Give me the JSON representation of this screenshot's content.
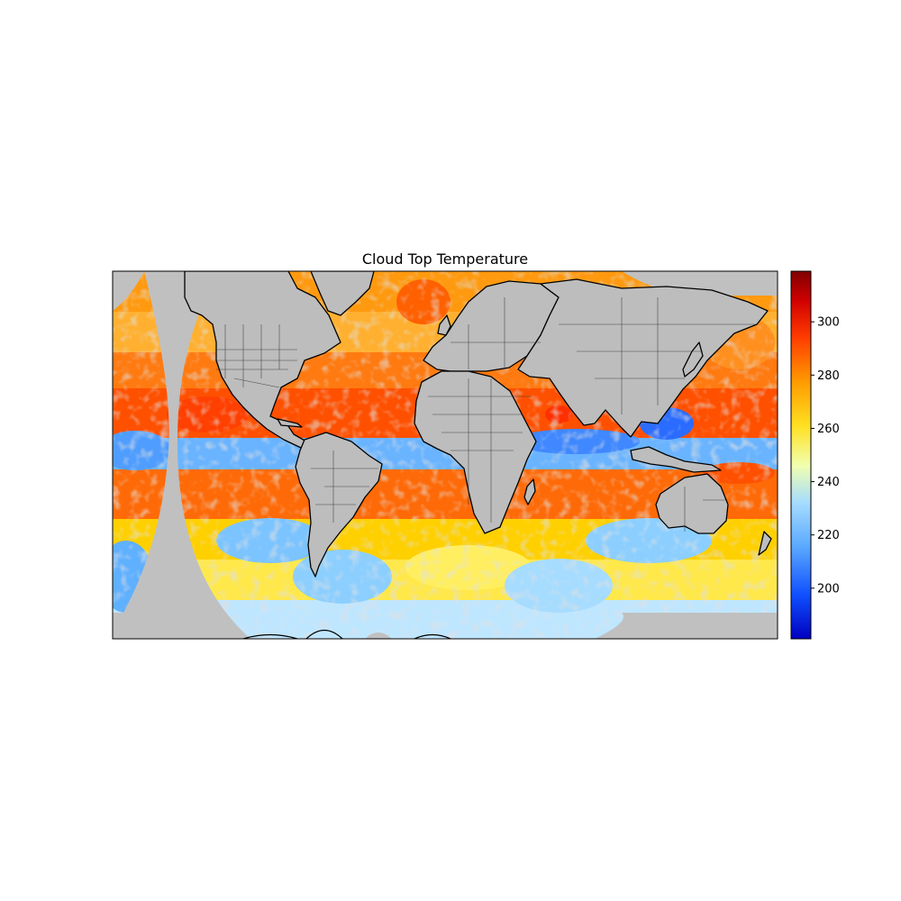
{
  "map": {
    "title": "Cloud Top Temperature",
    "projection": "plate-carree",
    "extent": {
      "lon": [
        -180,
        180
      ],
      "lat": [
        -90,
        90
      ]
    },
    "background_color": "#c0c0c0",
    "features": [
      "coastlines",
      "country-borders",
      "us-state-borders"
    ]
  },
  "colorbar": {
    "colormap": "jet",
    "vmin": 181,
    "vmax": 319,
    "ticks": [
      "200",
      "220",
      "240",
      "260",
      "280",
      "300"
    ],
    "tick_values": [
      200,
      220,
      240,
      260,
      280,
      300
    ]
  }
}
